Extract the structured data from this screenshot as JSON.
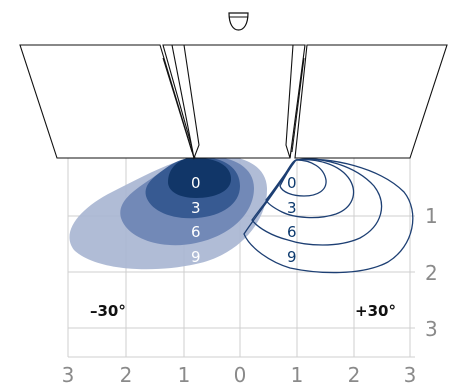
{
  "bottom_scale": [
    "3",
    "2",
    "1",
    "0",
    "1",
    "2",
    "3"
  ],
  "right_scale": [
    "1",
    "2",
    "3"
  ],
  "left_pattern": {
    "labels": [
      "0",
      "3",
      "6",
      "9"
    ],
    "colors": [
      "#a7b5d2",
      "#6f86b5",
      "#34578f",
      "#0f3566"
    ]
  },
  "right_pattern": {
    "labels": [
      "0",
      "3",
      "6",
      "9"
    ],
    "line_color": "#1d3f73"
  },
  "angle_labels": {
    "left": "–30°",
    "right": "+30°"
  },
  "icon": "head-icon"
}
